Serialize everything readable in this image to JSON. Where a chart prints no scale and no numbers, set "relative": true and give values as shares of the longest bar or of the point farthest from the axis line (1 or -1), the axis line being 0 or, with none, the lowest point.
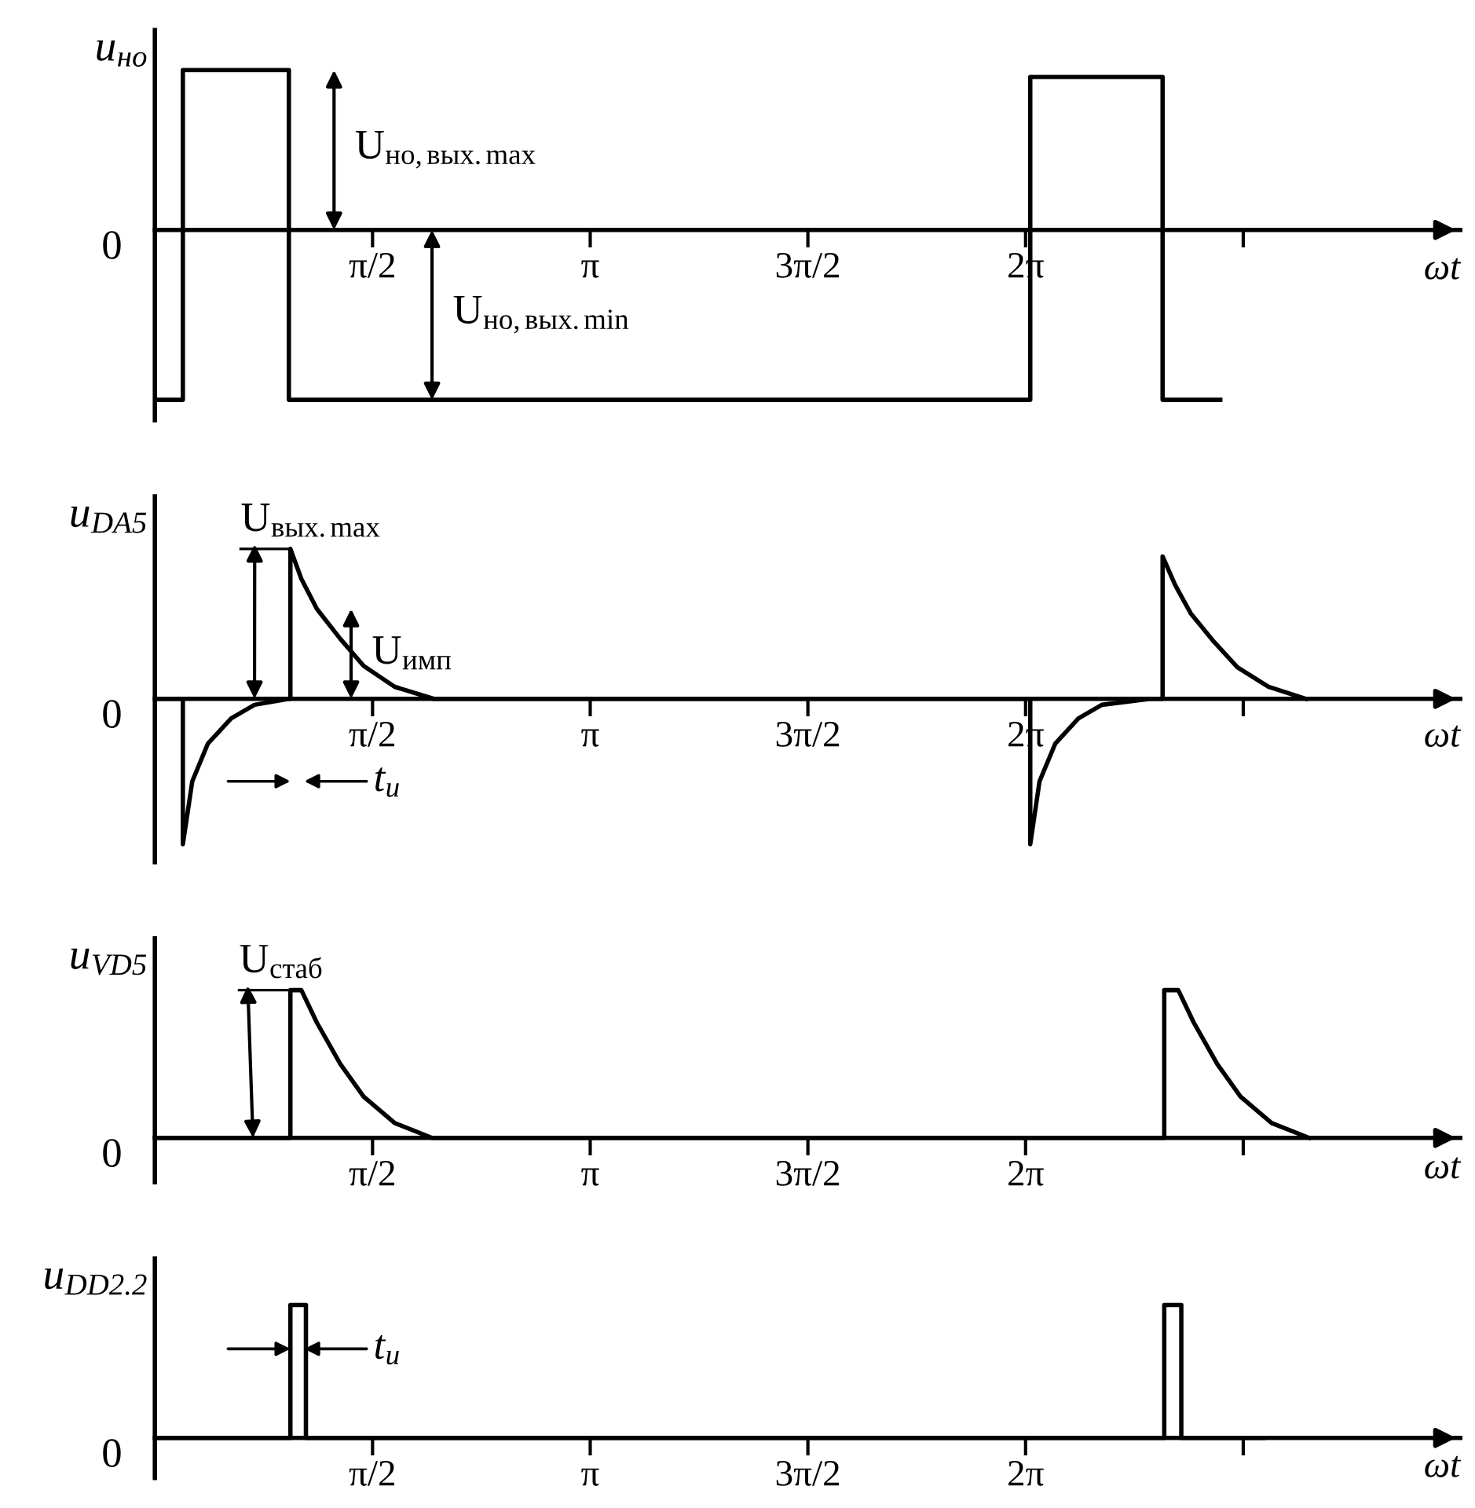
{
  "chart_data": [
    {
      "type": "line",
      "relative": true,
      "ylabel": "u$_{но}$",
      "xlabel": "ωt",
      "xlim": [
        0,
        9.42
      ],
      "xticks": [
        {
          "value": 1.5708,
          "label": "π/2"
        },
        {
          "value": 3.1416,
          "label": "π"
        },
        {
          "value": 4.7124,
          "label": "3π/2"
        },
        {
          "value": 6.2832,
          "label": "2π"
        },
        {
          "value": 7.854,
          "label": null
        }
      ],
      "tick_labels": "x",
      "grid": false,
      "legend": false,
      "marker": "none",
      "line_style": "solid",
      "series": [
        {
          "color": "#000000",
          "x": [
            0,
            0.202,
            0.202,
            0.967,
            0.967,
            6.317,
            6.317,
            7.272,
            7.272,
            7.688
          ],
          "values": [
            -1,
            -1,
            0.94,
            0.94,
            -1,
            -1,
            0.9,
            0.9,
            -1,
            -1
          ]
        }
      ],
      "annotations": [
        "0",
        "U$_{но,вых.max}$",
        "U$_{но,вых.min}$"
      ]
    },
    {
      "type": "line",
      "relative": true,
      "ylabel": "u$_{DA5}$",
      "xlabel": "ωt",
      "xlim": [
        0,
        9.42
      ],
      "xticks": [
        {
          "value": 1.5708,
          "label": "π/2"
        },
        {
          "value": 3.1416,
          "label": "π"
        },
        {
          "value": 4.7124,
          "label": "3π/2"
        },
        {
          "value": 6.2832,
          "label": "2π"
        },
        {
          "value": 7.854,
          "label": null
        }
      ],
      "tick_labels": "x",
      "grid": false,
      "legend": false,
      "marker": "none",
      "line_style": "solid",
      "series": [
        {
          "color": "#000000",
          "x": [
            0,
            0.202,
            0.202,
            0.27,
            0.382,
            0.551,
            0.719,
            0.967,
            0.978,
            0.978,
            1.057,
            1.169,
            1.338,
            1.506,
            1.731,
            2.012,
            6.317,
            6.317,
            6.384,
            6.497,
            6.665,
            6.834,
            7.182,
            7.272,
            7.272,
            7.362,
            7.475,
            7.643,
            7.812,
            8.036,
            8.306
          ],
          "values": [
            0,
            0,
            -0.97,
            -0.55,
            -0.3,
            -0.13,
            -0.04,
            0,
            0,
            1,
            0.8,
            0.6,
            0.4,
            0.22,
            0.08,
            0,
            0,
            -0.97,
            -0.55,
            -0.3,
            -0.13,
            -0.04,
            0,
            0,
            0.95,
            0.76,
            0.57,
            0.38,
            0.21,
            0.08,
            0
          ]
        }
      ],
      "annotations": [
        "0",
        "U$_{вых.max}$",
        "U$_{имп}$",
        "t$_{и}$"
      ]
    },
    {
      "type": "line",
      "relative": true,
      "ylabel": "u$_{VD5}$",
      "xlabel": "ωt",
      "xlim": [
        0,
        9.42
      ],
      "xticks": [
        {
          "value": 1.5708,
          "label": "π/2"
        },
        {
          "value": 3.1416,
          "label": "π"
        },
        {
          "value": 4.7124,
          "label": "3π/2"
        },
        {
          "value": 6.2832,
          "label": "2π"
        },
        {
          "value": 7.854,
          "label": null
        }
      ],
      "tick_labels": "x",
      "grid": false,
      "legend": false,
      "marker": "none",
      "line_style": "solid",
      "series": [
        {
          "color": "#000000",
          "x": [
            0,
            0.978,
            0.978,
            1.057,
            1.169,
            1.338,
            1.506,
            1.731,
            2.0,
            7.284,
            7.284,
            7.385,
            7.497,
            7.666,
            7.834,
            8.059,
            8.329
          ],
          "values": [
            0,
            0,
            1,
            1,
            0.78,
            0.5,
            0.28,
            0.1,
            0,
            0,
            1,
            1,
            0.78,
            0.5,
            0.28,
            0.1,
            0
          ]
        }
      ],
      "annotations": [
        "0",
        "U$_{стаб}$"
      ]
    },
    {
      "type": "line",
      "relative": true,
      "ylabel": "u$_{DD2.2}$",
      "xlabel": "ωt",
      "xlim": [
        0,
        9.42
      ],
      "xticks": [
        {
          "value": 1.5708,
          "label": "π/2"
        },
        {
          "value": 3.1416,
          "label": "π"
        },
        {
          "value": 4.7124,
          "label": "3π/2"
        },
        {
          "value": 6.2832,
          "label": "2π"
        },
        {
          "value": 7.854,
          "label": null
        }
      ],
      "tick_labels": "x",
      "grid": false,
      "legend": false,
      "marker": "none",
      "line_style": "solid",
      "series": [
        {
          "color": "#000000",
          "x": [
            0,
            0.978,
            0.978,
            1.09,
            1.09,
            7.284,
            7.284,
            7.407,
            7.407,
            8.0
          ],
          "values": [
            0,
            0,
            1,
            1,
            0,
            0,
            1,
            1,
            0,
            0
          ]
        }
      ],
      "annotations": [
        "0",
        "t$_{и}$"
      ]
    }
  ]
}
